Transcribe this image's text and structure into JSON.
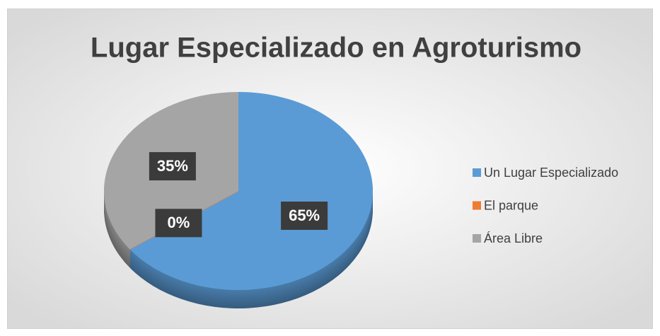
{
  "chart_data": {
    "type": "pie",
    "title": "Lugar Especializado en Agroturismo",
    "categories": [
      "Un Lugar Especializado",
      "El parque",
      "Área Libre"
    ],
    "values": [
      65,
      0,
      35
    ],
    "value_labels": [
      "65%",
      "0%",
      "35%"
    ],
    "colors": [
      "#5b9bd5",
      "#ed7d31",
      "#a5a5a5"
    ],
    "legend": "right"
  }
}
